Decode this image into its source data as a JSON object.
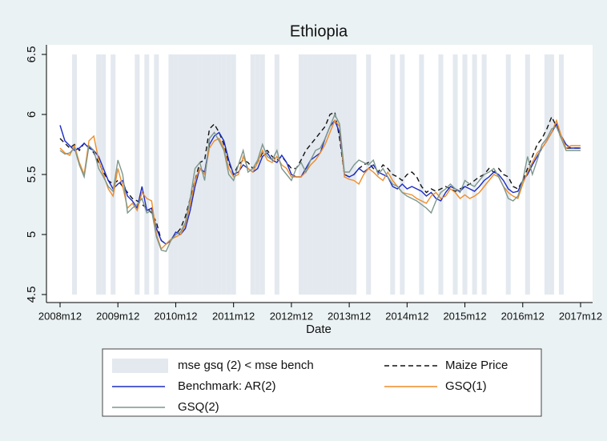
{
  "chart_data": {
    "type": "line",
    "title": "Ethiopia",
    "x_label": "Date",
    "x": [
      "2008m12",
      "2009m1",
      "2009m2",
      "2009m3",
      "2009m4",
      "2009m5",
      "2009m6",
      "2009m7",
      "2009m8",
      "2009m9",
      "2009m10",
      "2009m11",
      "2009m12",
      "2010m1",
      "2010m2",
      "2010m3",
      "2010m4",
      "2010m5",
      "2010m6",
      "2010m7",
      "2010m8",
      "2010m9",
      "2010m10",
      "2010m11",
      "2010m12",
      "2011m1",
      "2011m2",
      "2011m3",
      "2011m4",
      "2011m5",
      "2011m6",
      "2011m7",
      "2011m8",
      "2011m9",
      "2011m10",
      "2011m11",
      "2011m12",
      "2012m1",
      "2012m2",
      "2012m3",
      "2012m4",
      "2012m5",
      "2012m6",
      "2012m7",
      "2012m8",
      "2012m9",
      "2012m10",
      "2012m11",
      "2012m12",
      "2013m1",
      "2013m2",
      "2013m3",
      "2013m4",
      "2013m5",
      "2013m6",
      "2013m7",
      "2013m8",
      "2013m9",
      "2013m10",
      "2013m11",
      "2013m12",
      "2014m1",
      "2014m2",
      "2014m3",
      "2014m4",
      "2014m5",
      "2014m6",
      "2014m7",
      "2014m8",
      "2014m9",
      "2014m10",
      "2014m11",
      "2014m12",
      "2015m1",
      "2015m2",
      "2015m3",
      "2015m4",
      "2015m5",
      "2015m6",
      "2015m7",
      "2015m8",
      "2015m9",
      "2015m10",
      "2015m11",
      "2015m12",
      "2016m1",
      "2016m2",
      "2016m3",
      "2016m4",
      "2016m5",
      "2016m6",
      "2016m7",
      "2016m8",
      "2016m9",
      "2016m10",
      "2016m11",
      "2016m12",
      "2017m1",
      "2017m2",
      "2017m3",
      "2017m4",
      "2017m5",
      "2017m6",
      "2017m7",
      "2017m8",
      "2017m9",
      "2017m10",
      "2017m11",
      "2017m12"
    ],
    "xticks": [
      "2008m12",
      "2009m12",
      "2010m12",
      "2011m12",
      "2012m12",
      "2013m12",
      "2014m12",
      "2015m12",
      "2016m12",
      "2017m12"
    ],
    "ylim": [
      4.5,
      6.5
    ],
    "yticks": [
      4.5,
      5,
      5.5,
      6,
      6.5
    ],
    "shade_label": "mse gsq (2) < mse bench",
    "shade_color": "#e3e9ef",
    "shaded": [
      "2009m3",
      "2009m8",
      "2009m9",
      "2009m11",
      "2010m4",
      "2010m6",
      "2010m8",
      "2010m11",
      "2010m12",
      "2011m1",
      "2011m2",
      "2011m3",
      "2011m4",
      "2011m5",
      "2011m6",
      "2011m7",
      "2011m8",
      "2011m9",
      "2011m10",
      "2011m11",
      "2011m12",
      "2012m4",
      "2012m5",
      "2012m6",
      "2012m9",
      "2013m2",
      "2013m3",
      "2013m4",
      "2013m5",
      "2013m6",
      "2013m7",
      "2013m8",
      "2013m9",
      "2013m10",
      "2013m11",
      "2013m12",
      "2014m1",
      "2014m4",
      "2014m9",
      "2014m11",
      "2015m3",
      "2015m7",
      "2015m10",
      "2015m12",
      "2016m2",
      "2016m4",
      "2016m9",
      "2017m1",
      "2017m5",
      "2017m6",
      "2017m8"
    ],
    "series": [
      {
        "name": "Maize Price",
        "color": "#111111",
        "dash": true,
        "values": [
          5.8,
          5.76,
          5.72,
          5.75,
          5.7,
          5.76,
          5.73,
          5.68,
          5.6,
          5.52,
          5.45,
          5.42,
          5.45,
          5.4,
          5.35,
          5.3,
          5.28,
          5.25,
          5.22,
          5.18,
          5.1,
          4.95,
          4.92,
          4.96,
          5.0,
          5.05,
          5.15,
          5.3,
          5.45,
          5.6,
          5.62,
          5.88,
          5.92,
          5.85,
          5.75,
          5.6,
          5.5,
          5.58,
          5.62,
          5.6,
          5.55,
          5.6,
          5.68,
          5.7,
          5.65,
          5.62,
          5.65,
          5.6,
          5.55,
          5.55,
          5.62,
          5.7,
          5.75,
          5.8,
          5.85,
          5.9,
          6.0,
          6.02,
          5.8,
          5.5,
          5.48,
          5.5,
          5.55,
          5.58,
          5.6,
          5.55,
          5.52,
          5.58,
          5.55,
          5.5,
          5.48,
          5.45,
          5.5,
          5.52,
          5.48,
          5.4,
          5.35,
          5.38,
          5.36,
          5.38,
          5.4,
          5.38,
          5.36,
          5.38,
          5.4,
          5.42,
          5.45,
          5.48,
          5.5,
          5.55,
          5.52,
          5.55,
          5.5,
          5.48,
          5.4,
          5.38,
          5.45,
          5.55,
          5.65,
          5.75,
          5.8,
          5.88,
          5.98,
          5.9,
          5.8,
          5.72,
          5.72,
          5.72,
          5.72
        ]
      },
      {
        "name": "Benchmark: AR(2)",
        "color": "#1c2bc4",
        "values": [
          5.91,
          5.78,
          5.74,
          5.7,
          5.72,
          5.76,
          5.72,
          5.7,
          5.65,
          5.55,
          5.45,
          5.38,
          5.42,
          5.45,
          5.32,
          5.28,
          5.22,
          5.4,
          5.2,
          5.22,
          5.05,
          4.95,
          4.92,
          4.95,
          5.02,
          5.0,
          5.05,
          5.2,
          5.4,
          5.55,
          5.52,
          5.75,
          5.82,
          5.85,
          5.78,
          5.62,
          5.5,
          5.52,
          5.58,
          5.55,
          5.52,
          5.55,
          5.65,
          5.68,
          5.62,
          5.6,
          5.66,
          5.6,
          5.5,
          5.48,
          5.48,
          5.55,
          5.62,
          5.65,
          5.68,
          5.8,
          5.9,
          5.95,
          5.85,
          5.5,
          5.48,
          5.5,
          5.55,
          5.52,
          5.55,
          5.58,
          5.52,
          5.5,
          5.48,
          5.4,
          5.38,
          5.42,
          5.38,
          5.4,
          5.38,
          5.36,
          5.32,
          5.35,
          5.3,
          5.28,
          5.35,
          5.4,
          5.38,
          5.36,
          5.4,
          5.38,
          5.36,
          5.4,
          5.45,
          5.48,
          5.52,
          5.5,
          5.45,
          5.38,
          5.35,
          5.36,
          5.45,
          5.5,
          5.58,
          5.65,
          5.72,
          5.78,
          5.85,
          5.92,
          5.82,
          5.75,
          5.72,
          5.72,
          5.72
        ]
      },
      {
        "name": "GSQ(1)",
        "color": "#f08c28",
        "values": [
          5.72,
          5.68,
          5.66,
          5.74,
          5.6,
          5.5,
          5.78,
          5.82,
          5.62,
          5.5,
          5.38,
          5.32,
          5.55,
          5.4,
          5.22,
          5.26,
          5.2,
          5.35,
          5.3,
          5.28,
          5.0,
          4.88,
          4.92,
          4.96,
          4.98,
          5.0,
          5.08,
          5.25,
          5.45,
          5.55,
          5.5,
          5.72,
          5.78,
          5.8,
          5.72,
          5.55,
          5.48,
          5.5,
          5.65,
          5.55,
          5.52,
          5.6,
          5.7,
          5.62,
          5.6,
          5.65,
          5.58,
          5.55,
          5.48,
          5.48,
          5.48,
          5.52,
          5.58,
          5.62,
          5.68,
          5.75,
          5.85,
          5.95,
          5.9,
          5.48,
          5.46,
          5.45,
          5.42,
          5.5,
          5.55,
          5.52,
          5.48,
          5.45,
          5.52,
          5.45,
          5.4,
          5.35,
          5.34,
          5.33,
          5.3,
          5.28,
          5.26,
          5.32,
          5.35,
          5.3,
          5.32,
          5.38,
          5.35,
          5.3,
          5.33,
          5.3,
          5.32,
          5.35,
          5.4,
          5.45,
          5.5,
          5.48,
          5.4,
          5.35,
          5.32,
          5.3,
          5.42,
          5.52,
          5.6,
          5.68,
          5.72,
          5.78,
          5.85,
          5.95,
          5.82,
          5.72,
          5.74,
          5.74,
          5.74
        ]
      },
      {
        "name": "GSQ(2)",
        "color": "#7d978c",
        "values": [
          5.7,
          5.67,
          5.68,
          5.72,
          5.58,
          5.48,
          5.74,
          5.7,
          5.55,
          5.48,
          5.4,
          5.36,
          5.62,
          5.5,
          5.18,
          5.22,
          5.25,
          5.3,
          5.18,
          5.2,
          4.98,
          4.87,
          4.86,
          4.95,
          5.0,
          5.02,
          5.1,
          5.3,
          5.55,
          5.6,
          5.45,
          5.8,
          5.85,
          5.78,
          5.7,
          5.5,
          5.45,
          5.58,
          5.7,
          5.52,
          5.55,
          5.62,
          5.75,
          5.65,
          5.62,
          5.7,
          5.55,
          5.5,
          5.45,
          5.55,
          5.6,
          5.52,
          5.62,
          5.7,
          5.72,
          5.8,
          5.9,
          6.0,
          5.92,
          5.52,
          5.52,
          5.58,
          5.62,
          5.6,
          5.58,
          5.62,
          5.5,
          5.55,
          5.48,
          5.42,
          5.4,
          5.35,
          5.32,
          5.3,
          5.28,
          5.25,
          5.22,
          5.18,
          5.28,
          5.35,
          5.38,
          5.42,
          5.38,
          5.35,
          5.45,
          5.42,
          5.4,
          5.45,
          5.5,
          5.52,
          5.55,
          5.48,
          5.4,
          5.3,
          5.28,
          5.32,
          5.45,
          5.65,
          5.5,
          5.62,
          5.75,
          5.8,
          5.88,
          5.9,
          5.8,
          5.7,
          5.7,
          5.7,
          5.7
        ]
      }
    ]
  }
}
